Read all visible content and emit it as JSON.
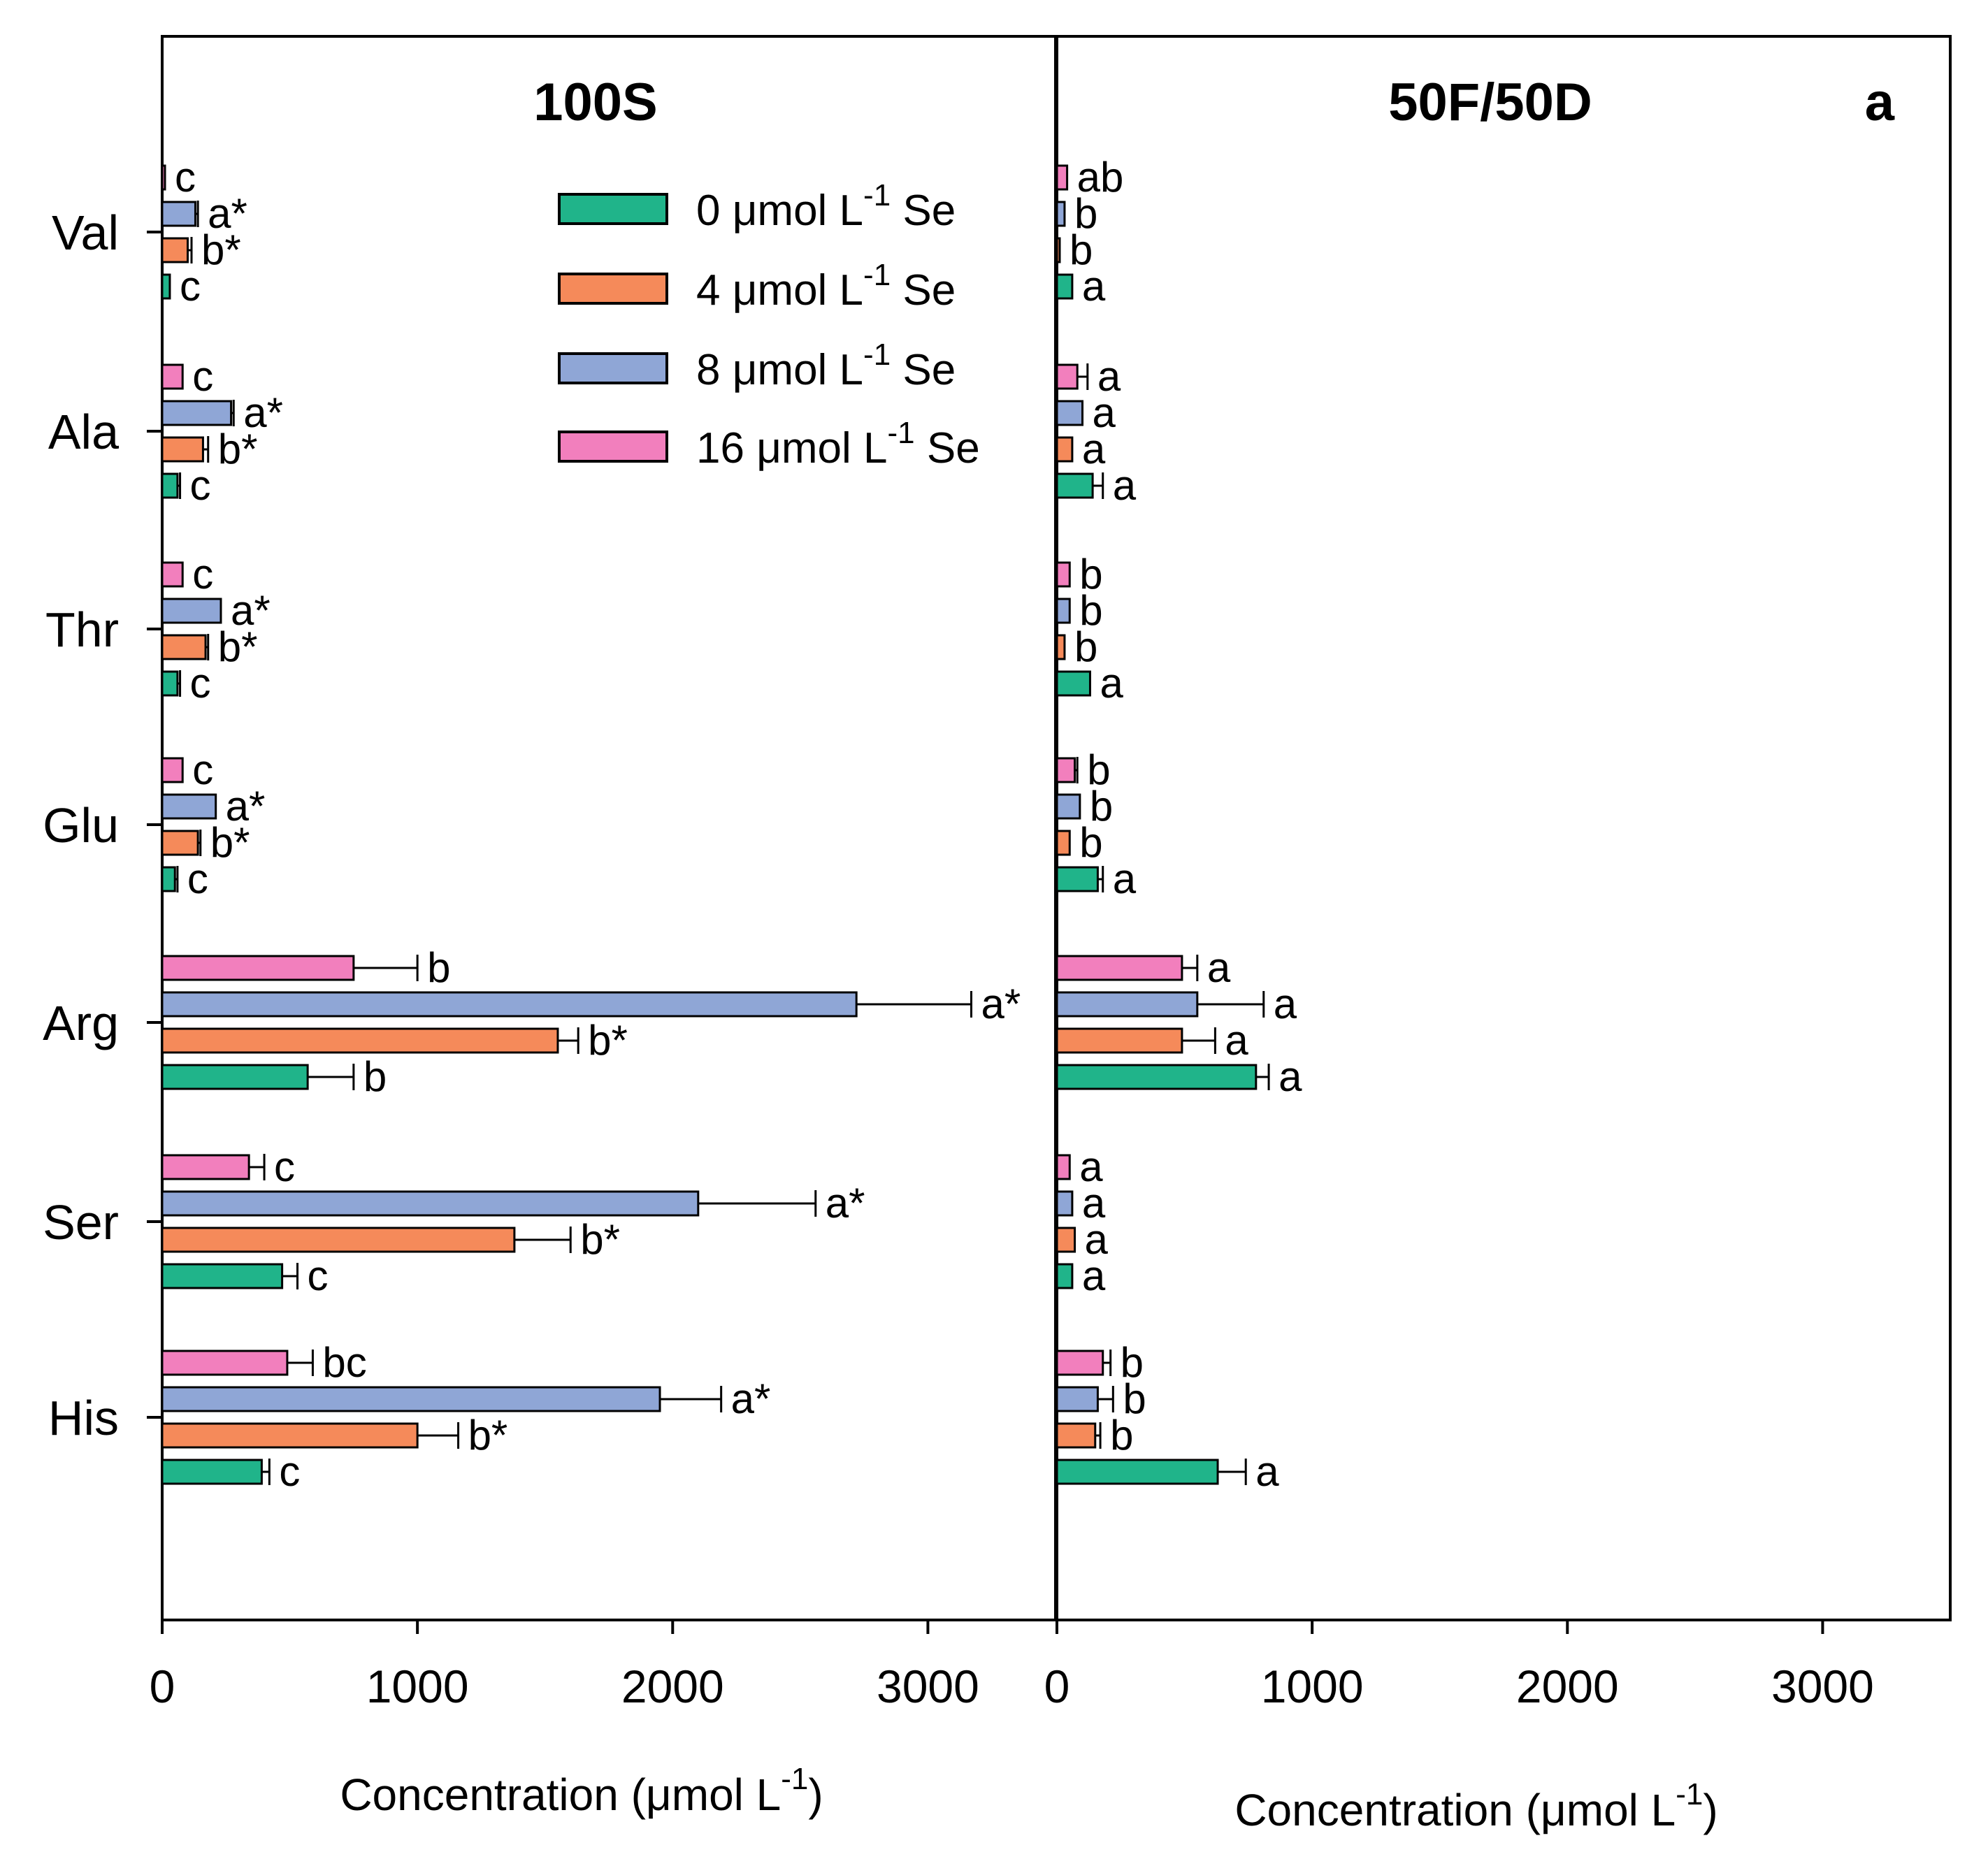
{
  "panel_letter": "a",
  "legend": [
    {
      "pre": "0 μmol L",
      "sup": "-1",
      "post": " Se",
      "color": "#20b48a"
    },
    {
      "pre": "4 μmol L",
      "sup": "-1",
      "post": " Se",
      "color": "#f58a5a"
    },
    {
      "pre": "8 μmol L",
      "sup": "-1",
      "post": " Se",
      "color": "#8fa6d6"
    },
    {
      "pre": "16 μmol L",
      "sup": "-1",
      "post": " Se",
      "color": "#f27fbd"
    }
  ],
  "chart_data": [
    {
      "type": "bar",
      "orientation": "horizontal",
      "title": "100S",
      "xlabel_pre": "Concentration (μmol L",
      "xlabel_sup": "-1",
      "xlabel_post": ")",
      "xlim": [
        0,
        3500
      ],
      "xticks": [
        0,
        1000,
        2000,
        3000
      ],
      "categories": [
        "Val",
        "Ala",
        "Thr",
        "Glu",
        "Arg",
        "Ser",
        "His"
      ],
      "series": [
        {
          "name": "0 μmol L-1 Se",
          "values": [
            30,
            60,
            60,
            50,
            570,
            470,
            390
          ],
          "errors": [
            0,
            10,
            10,
            10,
            180,
            60,
            30
          ],
          "labels": [
            "c",
            "c",
            "c",
            "c",
            "b",
            "c",
            "c"
          ]
        },
        {
          "name": "4 μmol L-1 Se",
          "values": [
            100,
            160,
            170,
            140,
            1550,
            1380,
            1000
          ],
          "errors": [
            15,
            20,
            10,
            10,
            80,
            220,
            160
          ],
          "labels": [
            "b*",
            "b*",
            "b*",
            "b*",
            "b*",
            "b*",
            "b*"
          ]
        },
        {
          "name": "8 μmol L-1 Se",
          "values": [
            130,
            270,
            230,
            210,
            2720,
            2100,
            1950
          ],
          "errors": [
            10,
            10,
            0,
            0,
            450,
            460,
            240
          ],
          "labels": [
            "a*",
            "a*",
            "a*",
            "a*",
            "a*",
            "a*",
            "a*"
          ]
        },
        {
          "name": "16 μmol L-1 Se",
          "values": [
            10,
            80,
            80,
            80,
            750,
            340,
            490
          ],
          "errors": [
            0,
            0,
            0,
            0,
            250,
            60,
            100
          ],
          "labels": [
            "c",
            "c",
            "c",
            "c",
            "b",
            "c",
            "bc"
          ]
        }
      ]
    },
    {
      "type": "bar",
      "orientation": "horizontal",
      "title": "50F/50D",
      "xlabel_pre": "Concentration (μmol L",
      "xlabel_sup": "-1",
      "xlabel_post": ")",
      "xlim": [
        0,
        3500
      ],
      "xticks": [
        0,
        1000,
        2000,
        3000
      ],
      "categories": [
        "Val",
        "Ala",
        "Thr",
        "Glu",
        "Arg",
        "Ser",
        "His"
      ],
      "series": [
        {
          "name": "0 μmol L-1 Se",
          "values": [
            60,
            140,
            130,
            160,
            780,
            60,
            630
          ],
          "errors": [
            0,
            40,
            0,
            20,
            50,
            0,
            110
          ],
          "labels": [
            "a",
            "a",
            "a",
            "a",
            "a",
            "a",
            "a"
          ]
        },
        {
          "name": "4 μmol L-1 Se",
          "values": [
            5,
            60,
            30,
            50,
            490,
            70,
            150
          ],
          "errors": [
            0,
            0,
            0,
            0,
            130,
            0,
            20
          ],
          "labels": [
            "b",
            "a",
            "b",
            "b",
            "a",
            "a",
            "b"
          ]
        },
        {
          "name": "8 μmol L-1 Se",
          "values": [
            30,
            100,
            50,
            90,
            550,
            60,
            160
          ],
          "errors": [
            0,
            0,
            0,
            0,
            260,
            0,
            60
          ],
          "labels": [
            "b",
            "a",
            "b",
            "b",
            "a",
            "a",
            "b"
          ]
        },
        {
          "name": "16 μmol L-1 Se",
          "values": [
            40,
            80,
            50,
            70,
            490,
            50,
            180
          ],
          "errors": [
            0,
            40,
            0,
            10,
            60,
            0,
            30
          ],
          "labels": [
            "ab",
            "a",
            "b",
            "b",
            "a",
            "a",
            "b"
          ]
        }
      ]
    }
  ]
}
